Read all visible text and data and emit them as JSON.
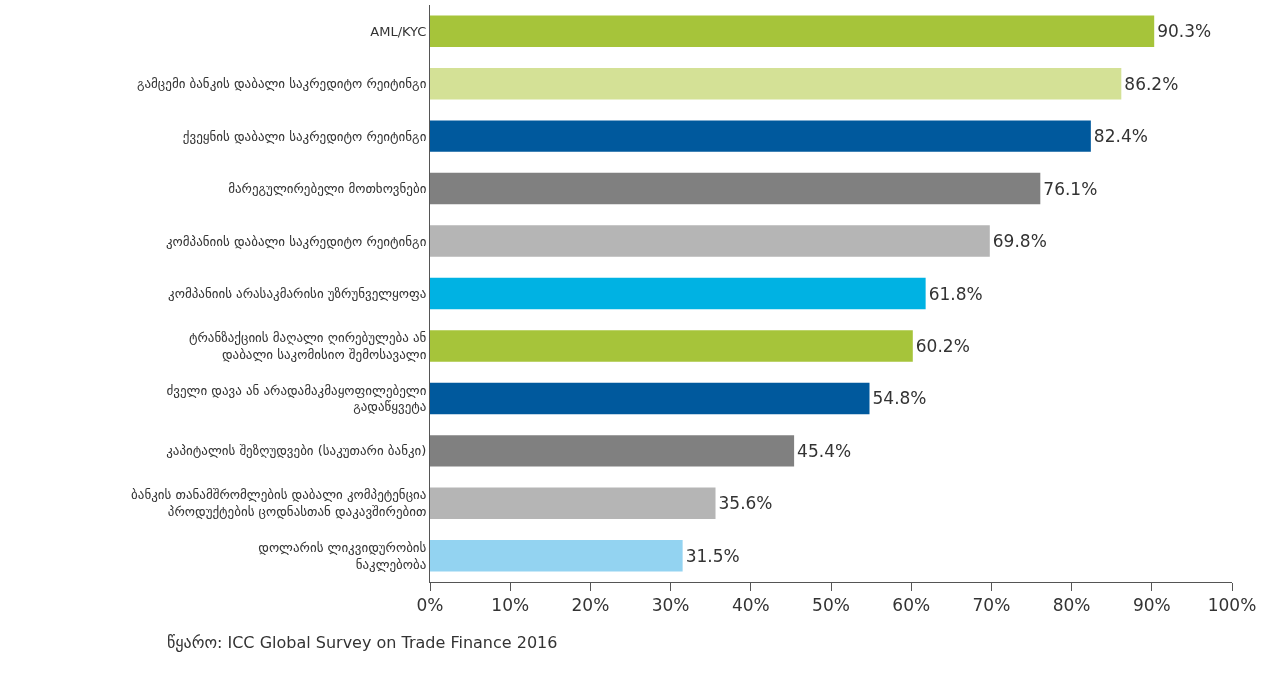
{
  "chart_data": {
    "type": "bar",
    "orientation": "horizontal",
    "categories": [
      "AML/KYC",
      "გამცემი ბანკის დაბალი საკრედიტო რეიტინგი",
      "ქვეყნის დაბალი საკრედიტო რეიტინგი",
      "მარეგულირებელი მოთხოვნები",
      "კომპანიის დაბალი საკრედიტო რეიტინგი",
      "კომპანიის არასაკმარისი უზრუნველყოფა",
      "ტრანზაქციის მაღალი ღირებულება ან\nდაბალი საკომისიო შემოსავალი",
      "ძველი დავა ან არადამაკმაყოფილებელი\nგადაწყვეტა",
      "კაპიტალის შეზღუდვები (საკუთარი ბანკი)",
      "ბანკის თანამშრომლების დაბალი კომპეტენცია\nპროდუქტების ცოდნასთან დაკავშირებით",
      "დოლარის ლიკვიდურობის\nნაკლებობა"
    ],
    "values": [
      90.3,
      86.2,
      82.4,
      76.1,
      69.8,
      61.8,
      60.2,
      54.8,
      45.4,
      35.6,
      31.5
    ],
    "colors": [
      "#a6c43a",
      "#d4e196",
      "#00599d",
      "#808080",
      "#b5b5b5",
      "#00b2e3",
      "#a6c43a",
      "#00599d",
      "#808080",
      "#b5b5b5",
      "#93d3f1"
    ],
    "value_labels": [
      "90.3%",
      "86.2%",
      "82.4%",
      "76.1%",
      "69.8%",
      "61.8%",
      "60.2%",
      "54.8%",
      "45.4%",
      "35.6%",
      "31.5%"
    ],
    "xlim": [
      0,
      100
    ],
    "xticks": [
      {
        "value": 0,
        "label": "0%"
      },
      {
        "value": 10,
        "label": "10%"
      },
      {
        "value": 20,
        "label": "20%"
      },
      {
        "value": 30,
        "label": "30%"
      },
      {
        "value": 40,
        "label": "40%"
      },
      {
        "value": 50,
        "label": "50%"
      },
      {
        "value": 60,
        "label": "60%"
      },
      {
        "value": 70,
        "label": "70%"
      },
      {
        "value": 80,
        "label": "80%"
      },
      {
        "value": 90,
        "label": "90%"
      },
      {
        "value": 100,
        "label": "100%"
      }
    ],
    "legend": false,
    "annotations": [
      "წყარო: ICC Global Survey on Trade Finance 2016"
    ]
  }
}
